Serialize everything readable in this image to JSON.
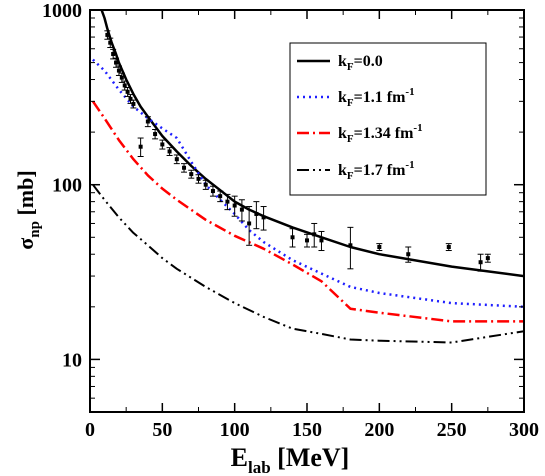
{
  "chart_data": {
    "type": "line",
    "xlabel": {
      "main": "E",
      "sub": "lab",
      "rest": " [MeV]"
    },
    "ylabel": {
      "main": "σ",
      "sub": "np",
      "rest": " [mb]"
    },
    "xlim": [
      0,
      300
    ],
    "ylim": [
      5,
      1000
    ],
    "yscale": "log",
    "x_ticks": [
      0,
      50,
      100,
      150,
      200,
      250,
      300
    ],
    "x_tick_labels": [
      "0",
      "50",
      "100",
      "150",
      "200",
      "250",
      "300"
    ],
    "y_ticks": [
      10,
      100,
      1000
    ],
    "y_tick_labels": [
      "10",
      "100",
      "1000"
    ],
    "legend_position": "top-right",
    "series": [
      {
        "name": {
          "pre": "k",
          "sub": "F",
          "post": "=0.0",
          "sup": ""
        },
        "color": "#000000",
        "style": "solid",
        "x": [
          8,
          10,
          12,
          15,
          18,
          20,
          25,
          30,
          35,
          40,
          50,
          60,
          70,
          80,
          90,
          100,
          110,
          120,
          140,
          160,
          180,
          200,
          250,
          300
        ],
        "y": [
          1000,
          900,
          780,
          650,
          560,
          500,
          400,
          330,
          280,
          245,
          190,
          155,
          128,
          108,
          93,
          80,
          72,
          66,
          57,
          50,
          44,
          40,
          34,
          30
        ]
      },
      {
        "name": {
          "pre": "k",
          "sub": "F",
          "post": "=1.1 fm",
          "sup": "-1"
        },
        "color": "#1f1fff",
        "style": "dotted",
        "x": [
          2,
          10,
          20,
          30,
          40,
          50,
          60,
          70,
          80,
          90,
          100,
          110,
          120,
          140,
          160,
          180,
          200,
          250,
          300
        ],
        "y": [
          520,
          450,
          350,
          280,
          240,
          210,
          185,
          135,
          100,
          82,
          68,
          55,
          47,
          37,
          31,
          26,
          24,
          21,
          20
        ]
      },
      {
        "name": {
          "pre": "k",
          "sub": "F",
          "post": "=1.34 fm",
          "sup": "-1"
        },
        "color": "#ff0000",
        "style": "dashdot",
        "x": [
          2,
          10,
          20,
          30,
          40,
          50,
          60,
          80,
          100,
          120,
          140,
          160,
          180,
          200,
          250,
          300
        ],
        "y": [
          300,
          240,
          180,
          140,
          113,
          95,
          82,
          63,
          51,
          43,
          35,
          28,
          19.5,
          18.5,
          16.5,
          16.5
        ]
      },
      {
        "name": {
          "pre": "k",
          "sub": "F",
          "post": "=1.7 fm",
          "sup": "-1"
        },
        "color": "#000000",
        "style": "dashdotdot",
        "x": [
          2,
          10,
          20,
          30,
          40,
          50,
          60,
          80,
          100,
          120,
          140,
          160,
          180,
          200,
          250,
          300
        ],
        "y": [
          100,
          82,
          65,
          53,
          45,
          38,
          33,
          26,
          21,
          17.5,
          15,
          14,
          13,
          12.8,
          12.5,
          14.5
        ]
      }
    ],
    "data_points": {
      "x": [
        12,
        14,
        16,
        18,
        20,
        22,
        24,
        26,
        28,
        30,
        35,
        40,
        45,
        50,
        55,
        60,
        65,
        70,
        75,
        80,
        85,
        90,
        95,
        100,
        105,
        110,
        115,
        120,
        140,
        150,
        155,
        160,
        180,
        200,
        220,
        248,
        270,
        275
      ],
      "y": [
        720,
        650,
        560,
        500,
        450,
        410,
        370,
        340,
        310,
        290,
        165,
        230,
        195,
        170,
        155,
        140,
        125,
        115,
        108,
        100,
        92,
        86,
        80,
        76,
        72,
        60,
        68,
        65,
        50,
        48,
        52,
        48,
        45,
        44,
        40,
        44,
        36,
        38
      ],
      "err": [
        40,
        40,
        35,
        30,
        28,
        25,
        22,
        20,
        18,
        15,
        20,
        15,
        12,
        10,
        8,
        8,
        7,
        6,
        6,
        6,
        6,
        6,
        8,
        10,
        10,
        15,
        12,
        10,
        6,
        4,
        8,
        6,
        12,
        2,
        4,
        2,
        4,
        2
      ]
    }
  }
}
